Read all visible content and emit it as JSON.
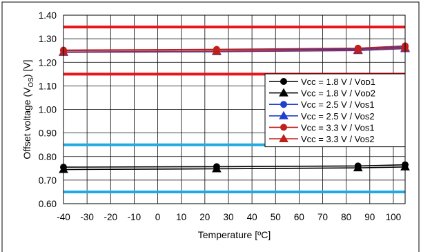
{
  "chart_data": {
    "type": "line",
    "title": "",
    "xlabel": "Temperature [ºC]",
    "ylabel_parts": [
      "Offset voltage (V",
      "OS",
      ") [V]"
    ],
    "xlim": [
      -40,
      105
    ],
    "ylim": [
      0.6,
      1.4
    ],
    "x_ticks": [
      -40,
      -30,
      -20,
      -10,
      0,
      10,
      20,
      30,
      40,
      50,
      60,
      70,
      80,
      90,
      100
    ],
    "x_tick_labels": [
      "-40",
      "-30",
      "-20",
      "-10",
      "0",
      "10",
      "20",
      "30",
      "40",
      "50",
      "60",
      "70",
      "80",
      "90",
      "100"
    ],
    "y_ticks": [
      0.6,
      0.7,
      0.8,
      0.9,
      1.0,
      1.1,
      1.2,
      1.3,
      1.4
    ],
    "y_tick_labels": [
      "0.60",
      "0.70",
      "0.80",
      "0.90",
      "1.00",
      "1.10",
      "1.20",
      "1.30",
      "1.40"
    ],
    "grid": true,
    "legend_position": "right-middle",
    "x": [
      -40,
      25,
      85,
      105
    ],
    "series": [
      {
        "name": "Vcc = 1.8 V / Vᴏᴅ1",
        "color": "#000000",
        "marker": "circle",
        "values": [
          0.755,
          0.757,
          0.76,
          0.765
        ]
      },
      {
        "name": "Vcc = 1.8 V / Vᴏᴅ2",
        "color": "#000000",
        "marker": "triangle",
        "values": [
          0.745,
          0.748,
          0.752,
          0.756
        ]
      },
      {
        "name": "Vcc = 2.5 V / Vos1",
        "color": "#1f3fd0",
        "marker": "circle",
        "values": [
          1.25,
          1.253,
          1.256,
          1.266
        ]
      },
      {
        "name": "Vcc = 2.5 V / Vos2",
        "color": "#1f3fd0",
        "marker": "triangle",
        "values": [
          1.242,
          1.245,
          1.25,
          1.258
        ]
      },
      {
        "name": "Vcc = 3.3 V / Vos1",
        "color": "#c0201b",
        "marker": "circle",
        "values": [
          1.252,
          1.255,
          1.26,
          1.27
        ]
      },
      {
        "name": "Vcc = 3.3 V / Vos2",
        "color": "#c0201b",
        "marker": "triangle",
        "values": [
          1.244,
          1.247,
          1.252,
          1.261
        ]
      }
    ],
    "reference_lines": [
      {
        "y": 1.35,
        "color": "#e8141c"
      },
      {
        "y": 1.15,
        "color": "#e8141c"
      },
      {
        "y": 0.85,
        "color": "#22a9e1"
      },
      {
        "y": 0.65,
        "color": "#22a9e1"
      }
    ]
  }
}
